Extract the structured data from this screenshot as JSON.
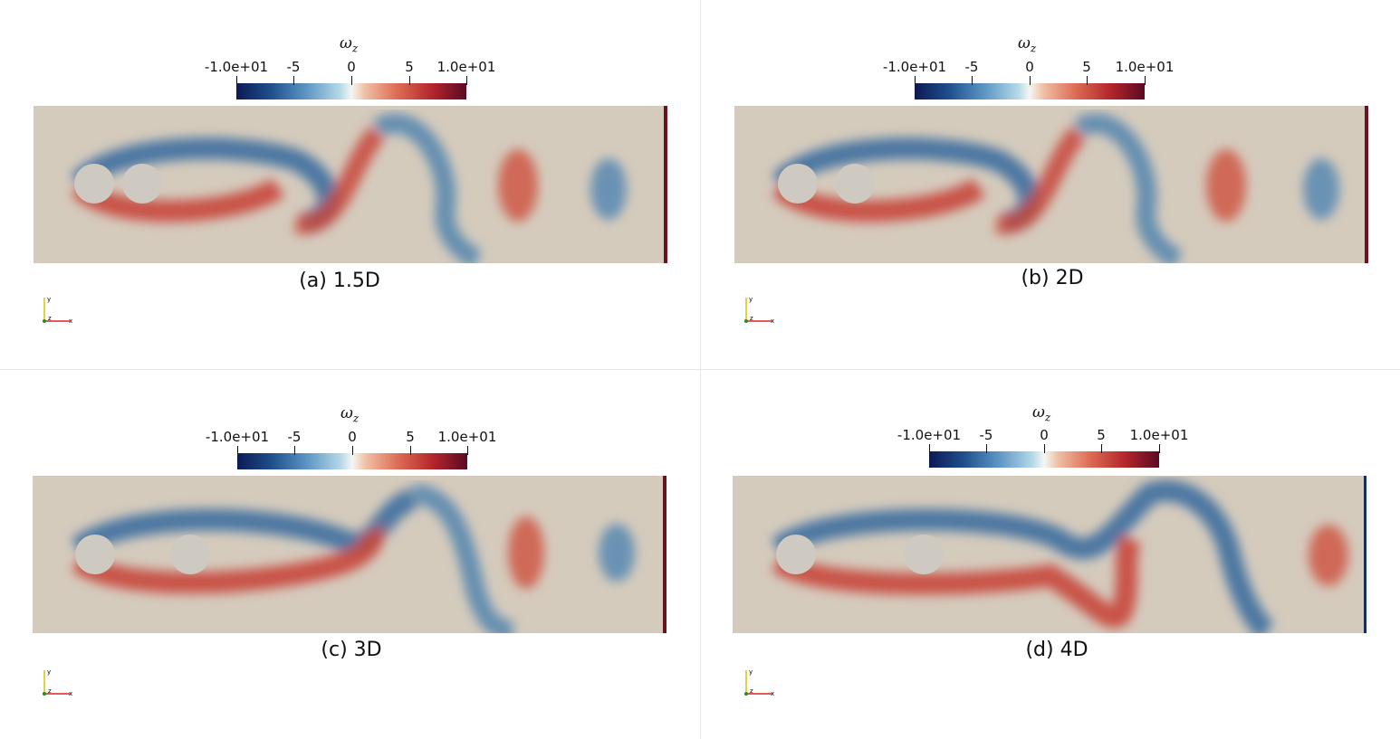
{
  "colorbar": {
    "symbol": "ω",
    "subscript": "z",
    "ticks": [
      "-1.0e+01",
      "-5",
      "0",
      "5",
      "1.0e+01"
    ],
    "colors": [
      "#0b1a55",
      "#5b94c3",
      "#f4f6f3",
      "#dd6b55",
      "#5a0a24"
    ]
  },
  "axes_labels": {
    "x": "x",
    "y": "y",
    "z": "z"
  },
  "panels": [
    {
      "caption": "(a) 1.5D"
    },
    {
      "caption": "(b) 2D"
    },
    {
      "caption": "(c) 3D"
    },
    {
      "caption": "(d) 4D"
    }
  ]
}
